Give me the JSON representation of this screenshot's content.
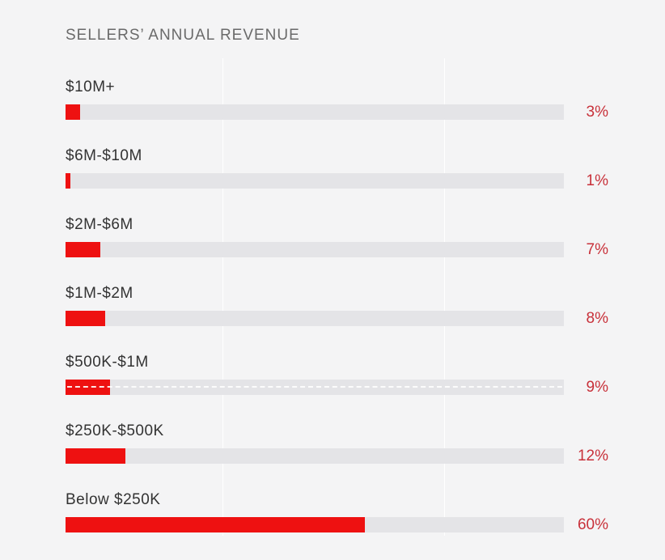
{
  "chart_data": {
    "type": "bar",
    "orientation": "horizontal",
    "title": "SELLERS’ ANNUAL REVENUE",
    "categories": [
      "$10M+",
      "$6M-$10M",
      "$2M-$6M",
      "$1M-$2M",
      "$500K-$1M",
      "$250K-$500K",
      "Below $250K"
    ],
    "values": [
      3,
      1,
      7,
      8,
      9,
      12,
      60
    ],
    "value_labels": [
      "3%",
      "1%",
      "7%",
      "8%",
      "9%",
      "12%",
      "60%"
    ],
    "xlim": [
      0,
      100
    ],
    "unit": "%",
    "grid": true,
    "colors": {
      "bar": "#ee1111",
      "track": "#e4e4e7",
      "value": "#c8313a"
    }
  }
}
